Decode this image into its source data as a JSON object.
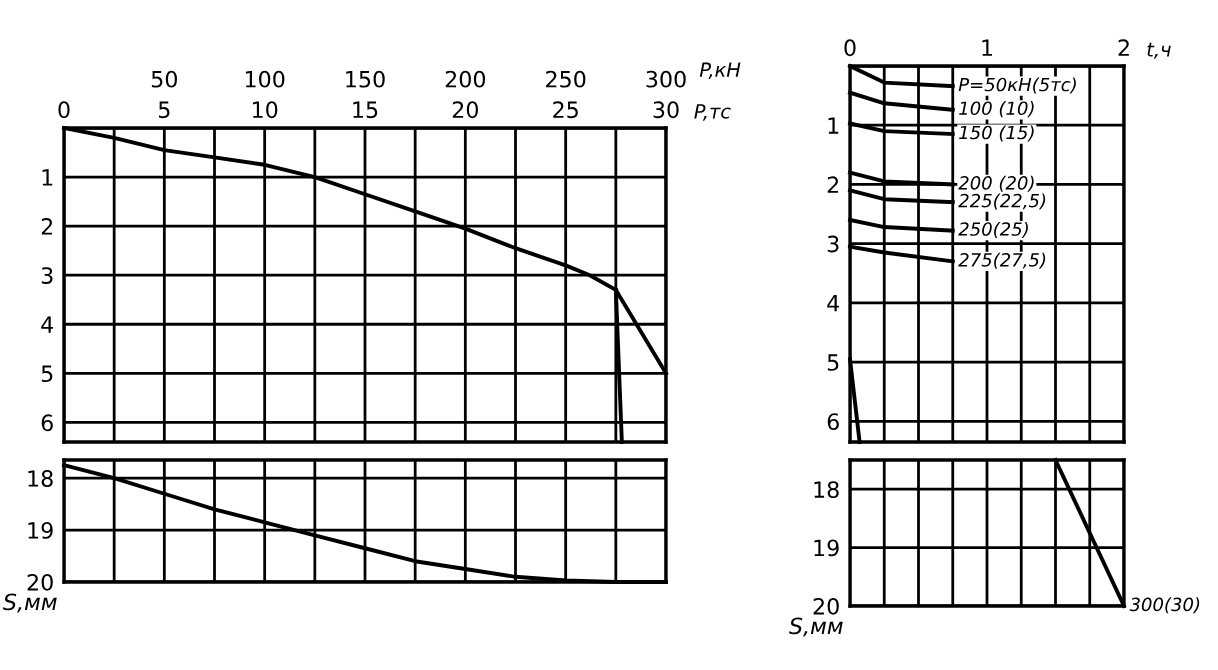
{
  "chart_data": [
    {
      "type": "line",
      "xlabel": "P,тс",
      "x2label": "P,кН",
      "xlim": [
        0,
        30
      ],
      "ylim": [
        6.4,
        0
      ],
      "x2lim": [
        0,
        300
      ],
      "xticks": [
        0,
        {
          "value": 2.5,
          "label": null
        },
        5,
        {
          "value": 7.5,
          "label": null
        },
        10,
        {
          "value": 12.5,
          "label": null
        },
        15,
        {
          "value": 17.5,
          "label": null
        },
        20,
        {
          "value": 22.5,
          "label": null
        },
        25,
        {
          "value": 27.5,
          "label": null
        },
        30
      ],
      "x2ticks": [
        50,
        100,
        150,
        200,
        250,
        300
      ],
      "yticks": [
        {
          "value": 0,
          "label": null
        },
        1,
        2,
        3,
        4,
        5,
        6
      ],
      "grid": true,
      "marker": "none",
      "line_style": "solid",
      "tick_labels": "xy",
      "series": [
        {
          "color": "#000000",
          "x": [
            0,
            2.5,
            5,
            7.5,
            10,
            12.5,
            15,
            17.5,
            20,
            22.5,
            25,
            26.2,
            27.5
          ],
          "values": [
            0,
            0.2,
            0.45,
            0.6,
            0.75,
            1.0,
            1.35,
            1.7,
            2.05,
            2.45,
            2.8,
            3.0,
            3.3
          ]
        },
        {
          "color": "#000000",
          "x": [
            27.5,
            30
          ],
          "values": [
            3.3,
            5.0
          ]
        },
        {
          "color": "#000000",
          "x": [
            27.5,
            27.8
          ],
          "values": [
            3.3,
            6.4
          ]
        }
      ]
    },
    {
      "type": "line",
      "ylabel": "S,мм",
      "xlim": [
        0,
        30
      ],
      "ylim": [
        20,
        17.65
      ],
      "xticks": [
        {
          "value": 0,
          "label": null
        },
        {
          "value": 2.5,
          "label": null
        },
        {
          "value": 5,
          "label": null
        },
        {
          "value": 7.5,
          "label": null
        },
        {
          "value": 10,
          "label": null
        },
        {
          "value": 12.5,
          "label": null
        },
        {
          "value": 15,
          "label": null
        },
        {
          "value": 17.5,
          "label": null
        },
        {
          "value": 20,
          "label": null
        },
        {
          "value": 22.5,
          "label": null
        },
        {
          "value": 25,
          "label": null
        },
        {
          "value": 27.5,
          "label": null
        },
        {
          "value": 30,
          "label": null
        }
      ],
      "yticks": [
        18,
        19,
        20
      ],
      "grid": true,
      "marker": "none",
      "line_style": "solid",
      "tick_labels": "y",
      "series": [
        {
          "color": "#000000",
          "x": [
            0,
            2.5,
            5,
            7.5,
            10,
            12.5,
            15,
            17.5,
            20,
            22.5,
            25,
            27.5,
            30
          ],
          "values": [
            17.75,
            18.0,
            18.3,
            18.6,
            18.85,
            19.1,
            19.35,
            19.6,
            19.75,
            19.9,
            19.97,
            20.0,
            20.0
          ]
        }
      ]
    },
    {
      "type": "line",
      "xlabel": "t,ч",
      "xlim": [
        0,
        2
      ],
      "ylim": [
        6.35,
        0
      ],
      "xticks": [
        0,
        {
          "value": 0.25,
          "label": null
        },
        {
          "value": 0.5,
          "label": null
        },
        {
          "value": 0.75,
          "label": null
        },
        1,
        {
          "value": 1.25,
          "label": null
        },
        {
          "value": 1.5,
          "label": null
        },
        {
          "value": 1.75,
          "label": null
        },
        2
      ],
      "yticks": [
        {
          "value": 0,
          "label": null
        },
        1,
        2,
        3,
        4,
        5,
        6
      ],
      "grid": true,
      "marker": "none",
      "line_style": "solid",
      "series": [
        {
          "name": "P=50кН(5тс)",
          "color": "#000000",
          "x": [
            0,
            0.25,
            0.75
          ],
          "values": [
            0,
            0.28,
            0.34
          ]
        },
        {
          "name": "100 (10)",
          "color": "#000000",
          "x": [
            0,
            0.25,
            0.75
          ],
          "values": [
            0.45,
            0.63,
            0.74
          ]
        },
        {
          "name": "150 (15)",
          "color": "#000000",
          "x": [
            0,
            0.25,
            0.75
          ],
          "values": [
            0.97,
            1.1,
            1.15
          ]
        },
        {
          "name": "200 (20)",
          "color": "#000000",
          "x": [
            0,
            0.25,
            0.75
          ],
          "values": [
            1.8,
            1.95,
            2.0
          ]
        },
        {
          "name": "225(22,5)",
          "color": "#000000",
          "x": [
            0,
            0.25,
            0.75
          ],
          "values": [
            2.1,
            2.25,
            2.3
          ]
        },
        {
          "name": "250(25)",
          "color": "#000000",
          "x": [
            0,
            0.25,
            0.75
          ],
          "values": [
            2.6,
            2.72,
            2.78
          ]
        },
        {
          "name": "275(27,5)",
          "color": "#000000",
          "x": [
            0,
            0.25,
            0.75
          ],
          "values": [
            3.05,
            3.15,
            3.3
          ]
        },
        {
          "color": "#000000",
          "x": [
            0,
            0.07
          ],
          "values": [
            4.95,
            6.35
          ]
        }
      ]
    },
    {
      "type": "line",
      "ylabel": "S,мм",
      "xlim": [
        0,
        2
      ],
      "ylim": [
        20,
        17.5
      ],
      "xticks": [
        {
          "value": 0,
          "label": null
        },
        {
          "value": 0.25,
          "label": null
        },
        {
          "value": 0.5,
          "label": null
        },
        {
          "value": 0.75,
          "label": null
        },
        {
          "value": 1,
          "label": null
        },
        {
          "value": 1.25,
          "label": null
        },
        {
          "value": 1.5,
          "label": null
        },
        {
          "value": 1.75,
          "label": null
        },
        {
          "value": 2,
          "label": null
        }
      ],
      "yticks": [
        18,
        19,
        20
      ],
      "grid": true,
      "marker": "none",
      "line_style": "solid",
      "tick_labels": "y",
      "series": [
        {
          "name": "300(30)",
          "color": "#000000",
          "x": [
            1.5,
            2.0
          ],
          "values": [
            17.5,
            20.0
          ]
        }
      ]
    }
  ]
}
